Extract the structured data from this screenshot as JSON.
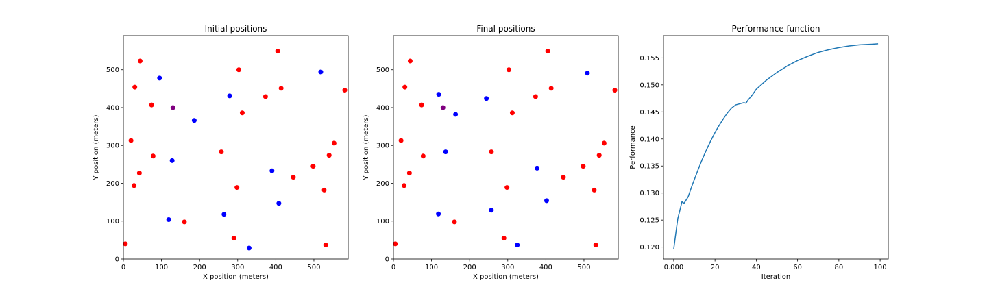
{
  "chart_data": [
    {
      "type": "scatter",
      "title": "Initial positions",
      "xlabel": "X position (meters)",
      "ylabel": "Y position (meters)",
      "xlim": [
        0,
        590
      ],
      "ylim": [
        0,
        590
      ],
      "xticks": [
        0,
        100,
        200,
        300,
        400,
        500
      ],
      "yticks": [
        0,
        100,
        200,
        300,
        400,
        500
      ],
      "grid": false,
      "colors": {
        "red": "#ff0000",
        "blue": "#0000ff",
        "purple": "#800080"
      },
      "series": [
        {
          "color": "red",
          "points": [
            [
              5,
              40
            ],
            [
              20,
              313
            ],
            [
              28,
              194
            ],
            [
              30,
              454
            ],
            [
              42,
              227
            ],
            [
              44,
              523
            ],
            [
              74,
              407
            ],
            [
              78,
              272
            ],
            [
              160,
              98
            ],
            [
              257,
              283
            ],
            [
              290,
              55
            ],
            [
              298,
              189
            ],
            [
              303,
              500
            ],
            [
              312,
              386
            ],
            [
              373,
              429
            ],
            [
              405,
              549
            ],
            [
              414,
              451
            ],
            [
              446,
              216
            ],
            [
              498,
              245
            ],
            [
              527,
              182
            ],
            [
              531,
              37
            ],
            [
              540,
              274
            ],
            [
              553,
              306
            ],
            [
              581,
              446
            ]
          ]
        },
        {
          "color": "blue",
          "points": [
            [
              95,
              478
            ],
            [
              119,
              104
            ],
            [
              128,
              260
            ],
            [
              186,
              366
            ],
            [
              264,
              118
            ],
            [
              279,
              431
            ],
            [
              330,
              29
            ],
            [
              390,
              233
            ],
            [
              408,
              147
            ],
            [
              518,
              494
            ]
          ]
        },
        {
          "color": "purple",
          "points": [
            [
              130,
              400
            ]
          ]
        }
      ]
    },
    {
      "type": "scatter",
      "title": "Final positions",
      "xlabel": "X position (meters)",
      "ylabel": "Y position (meters)",
      "xlim": [
        0,
        590
      ],
      "ylim": [
        0,
        590
      ],
      "xticks": [
        0,
        100,
        200,
        300,
        400,
        500
      ],
      "yticks": [
        0,
        100,
        200,
        300,
        400,
        500
      ],
      "grid": false,
      "colors": {
        "red": "#ff0000",
        "blue": "#0000ff",
        "purple": "#800080"
      },
      "series": [
        {
          "color": "red",
          "points": [
            [
              5,
              40
            ],
            [
              20,
              313
            ],
            [
              28,
              194
            ],
            [
              30,
              454
            ],
            [
              42,
              227
            ],
            [
              44,
              523
            ],
            [
              74,
              407
            ],
            [
              78,
              272
            ],
            [
              160,
              98
            ],
            [
              257,
              283
            ],
            [
              290,
              55
            ],
            [
              298,
              189
            ],
            [
              303,
              500
            ],
            [
              312,
              386
            ],
            [
              373,
              429
            ],
            [
              405,
              549
            ],
            [
              414,
              451
            ],
            [
              446,
              216
            ],
            [
              498,
              245
            ],
            [
              527,
              182
            ],
            [
              531,
              37
            ],
            [
              540,
              274
            ],
            [
              553,
              306
            ],
            [
              581,
              446
            ]
          ]
        },
        {
          "color": "blue",
          "points": [
            [
              118,
              119
            ],
            [
              119,
              435
            ],
            [
              137,
              283
            ],
            [
              163,
              382
            ],
            [
              244,
              424
            ],
            [
              257,
              129
            ],
            [
              325,
              37
            ],
            [
              377,
              240
            ],
            [
              402,
              154
            ],
            [
              509,
              491
            ]
          ]
        },
        {
          "color": "purple",
          "points": [
            [
              130,
              400
            ]
          ]
        }
      ]
    },
    {
      "type": "line",
      "title": "Performance function",
      "xlabel": "Iteration",
      "ylabel": "Performance",
      "xlim": [
        -4.95,
        103.95
      ],
      "ylim": [
        0.1178,
        0.1591
      ],
      "xticks": [
        0,
        20,
        40,
        60,
        80,
        100
      ],
      "yticks": [
        0.12,
        0.125,
        0.13,
        0.135,
        0.14,
        0.145,
        0.15,
        0.155
      ],
      "grid": false,
      "colors": {
        "line": "#1f77b4"
      },
      "series": [
        {
          "x": [
            0,
            1,
            2,
            3,
            4,
            5,
            6,
            7,
            8,
            9,
            10,
            12,
            14,
            16,
            18,
            20,
            22,
            24,
            26,
            28,
            30,
            32,
            34,
            35,
            36,
            38,
            40,
            45,
            50,
            55,
            60,
            65,
            70,
            75,
            80,
            85,
            90,
            95,
            99
          ],
          "y": [
            0.1196,
            0.1225,
            0.1253,
            0.1268,
            0.1284,
            0.1281,
            0.1287,
            0.1293,
            0.1304,
            0.1315,
            0.1325,
            0.1345,
            0.1364,
            0.1381,
            0.1397,
            0.1412,
            0.1425,
            0.1437,
            0.1448,
            0.1457,
            0.1463,
            0.1465,
            0.1467,
            0.1466,
            0.1472,
            0.1481,
            0.1492,
            0.1509,
            0.1523,
            0.1535,
            0.1545,
            0.1553,
            0.156,
            0.1565,
            0.1569,
            0.1572,
            0.1574,
            0.1575,
            0.1576
          ]
        }
      ]
    }
  ]
}
